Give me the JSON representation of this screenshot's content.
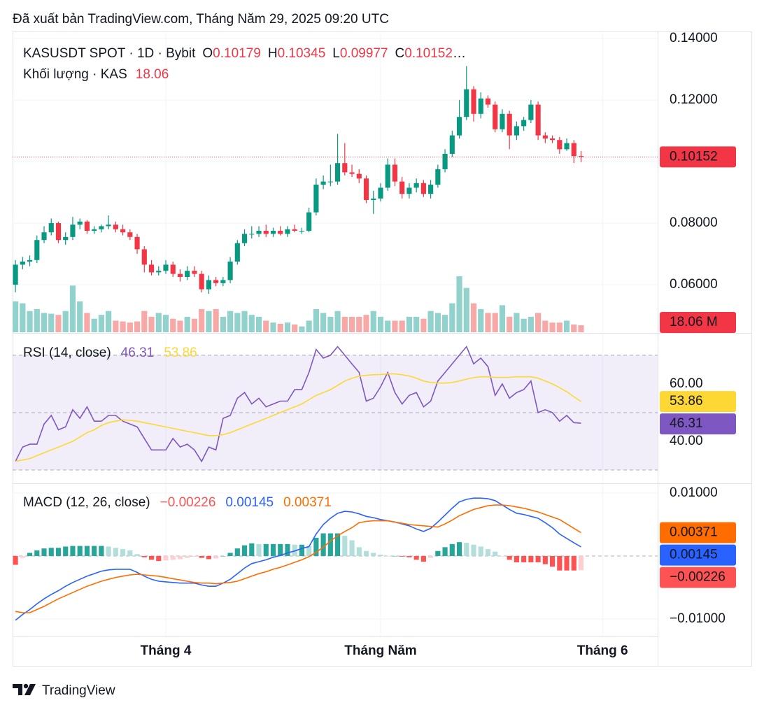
{
  "header": {
    "published": "Đã xuất bản TradingView.com, Tháng Năm 29, 2025 09:20 UTC"
  },
  "footer": {
    "brand": "TradingView"
  },
  "chart_data": [
    {
      "type": "candlestick",
      "legend": {
        "symbol": "KASUSDT SPOT · 1D · Bybit",
        "o_label": "O",
        "h_label": "H",
        "l_label": "L",
        "c_label": "C",
        "ellipsis": "…"
      },
      "xlim": [
        -0.4,
        89.7
      ],
      "ylim": [
        0.04455,
        0.14227
      ],
      "yticks": [
        {
          "value": 0.06,
          "label": "0.06000"
        },
        {
          "value": 0.08,
          "label": "0.08000"
        },
        {
          "value": 0.1,
          "label": "0.10000"
        },
        {
          "value": 0.12,
          "label": "0.12000"
        },
        {
          "value": 0.14,
          "label": "0.14000"
        }
      ],
      "grid": true,
      "up_color": "#089981",
      "down_color": "#f23645",
      "open": [
        0.06,
        0.0665,
        0.0675,
        0.068,
        0.0745,
        0.077,
        0.08,
        0.0745,
        0.0755,
        0.0795,
        0.0805,
        0.0775,
        0.078,
        0.079,
        0.0795,
        0.078,
        0.077,
        0.0755,
        0.0715,
        0.0665,
        0.064,
        0.0645,
        0.0665,
        0.0635,
        0.0625,
        0.0645,
        0.0635,
        0.0585,
        0.0615,
        0.0605,
        0.0615,
        0.0675,
        0.0735,
        0.0765,
        0.0765,
        0.0775,
        0.0765,
        0.0775,
        0.0765,
        0.078,
        0.0775,
        0.0775,
        0.0835,
        0.0925,
        0.0935,
        0.0935,
        0.0995,
        0.0965,
        0.096,
        0.0945,
        0.0875,
        0.088,
        0.0915,
        0.099,
        0.0935,
        0.0895,
        0.0915,
        0.093,
        0.0895,
        0.0925,
        0.0975,
        0.1025,
        0.1085,
        0.1145,
        0.1235,
        0.1155,
        0.1205,
        0.1185,
        0.1105,
        0.1155,
        0.1085,
        0.1115,
        0.1135,
        0.1185,
        0.1085,
        0.1075,
        0.107,
        0.104,
        0.106,
        0.10179
      ],
      "high": [
        0.068,
        0.069,
        0.0695,
        0.076,
        0.079,
        0.0815,
        0.0805,
        0.077,
        0.082,
        0.0815,
        0.081,
        0.079,
        0.0795,
        0.0825,
        0.0805,
        0.0795,
        0.078,
        0.0765,
        0.0725,
        0.068,
        0.066,
        0.068,
        0.0675,
        0.065,
        0.066,
        0.066,
        0.0645,
        0.063,
        0.0625,
        0.0625,
        0.069,
        0.0745,
        0.078,
        0.079,
        0.079,
        0.0795,
        0.0785,
        0.079,
        0.079,
        0.0795,
        0.0785,
        0.085,
        0.0945,
        0.0955,
        0.099,
        0.109,
        0.106,
        0.099,
        0.0975,
        0.0955,
        0.0905,
        0.093,
        0.101,
        0.101,
        0.095,
        0.093,
        0.0945,
        0.094,
        0.094,
        0.099,
        0.104,
        0.11,
        0.12,
        0.131,
        0.1245,
        0.1225,
        0.1215,
        0.1195,
        0.117,
        0.1165,
        0.113,
        0.1145,
        0.12,
        0.1195,
        0.1095,
        0.1085,
        0.108,
        0.1075,
        0.107,
        0.10345
      ],
      "low": [
        0.0575,
        0.065,
        0.066,
        0.067,
        0.0735,
        0.076,
        0.0735,
        0.073,
        0.0745,
        0.078,
        0.0765,
        0.0765,
        0.077,
        0.078,
        0.077,
        0.076,
        0.0745,
        0.07,
        0.064,
        0.063,
        0.063,
        0.0635,
        0.0625,
        0.061,
        0.0615,
        0.0625,
        0.0575,
        0.057,
        0.0595,
        0.0595,
        0.0605,
        0.0665,
        0.0725,
        0.075,
        0.0755,
        0.0755,
        0.0755,
        0.076,
        0.0755,
        0.077,
        0.0765,
        0.077,
        0.0825,
        0.091,
        0.092,
        0.0925,
        0.0955,
        0.095,
        0.093,
        0.0865,
        0.083,
        0.087,
        0.0905,
        0.092,
        0.088,
        0.088,
        0.09,
        0.0885,
        0.088,
        0.0915,
        0.0965,
        0.1015,
        0.1075,
        0.1135,
        0.113,
        0.114,
        0.1175,
        0.1095,
        0.1095,
        0.104,
        0.107,
        0.11,
        0.1125,
        0.107,
        0.106,
        0.106,
        0.1025,
        0.1035,
        0.0995,
        0.09977
      ],
      "close": [
        0.0665,
        0.0675,
        0.068,
        0.0745,
        0.077,
        0.08,
        0.0745,
        0.0755,
        0.0795,
        0.0805,
        0.0775,
        0.078,
        0.079,
        0.0795,
        0.078,
        0.077,
        0.0755,
        0.0715,
        0.0665,
        0.064,
        0.0645,
        0.0665,
        0.0635,
        0.0625,
        0.0645,
        0.0635,
        0.0585,
        0.0615,
        0.0605,
        0.0615,
        0.0675,
        0.0735,
        0.0765,
        0.0765,
        0.0775,
        0.0765,
        0.0775,
        0.0765,
        0.078,
        0.0775,
        0.0775,
        0.0835,
        0.0925,
        0.0935,
        0.0935,
        0.0995,
        0.0965,
        0.096,
        0.0945,
        0.0875,
        0.088,
        0.0915,
        0.099,
        0.0935,
        0.0895,
        0.0915,
        0.093,
        0.0895,
        0.0925,
        0.0975,
        0.1025,
        0.1085,
        0.1145,
        0.1235,
        0.1155,
        0.1205,
        0.1185,
        0.1105,
        0.1155,
        0.1085,
        0.1115,
        0.1135,
        0.1185,
        0.1085,
        0.1075,
        0.107,
        0.104,
        0.106,
        0.1018,
        0.10152
      ],
      "volume": {
        "name": "Khối lượng · KAS",
        "last_label": "18.06 M",
        "ylim": [
          0,
          780
        ],
        "up_color": "#92d2cc",
        "down_color": "#f7a9a7",
        "values": [
          80,
          75,
          55,
          60,
          50,
          48,
          45,
          55,
          121,
          80,
          50,
          35,
          45,
          55,
          30,
          28,
          25,
          28,
          55,
          40,
          50,
          45,
          35,
          30,
          40,
          35,
          60,
          55,
          60,
          40,
          55,
          50,
          55,
          45,
          40,
          30,
          25,
          22,
          25,
          20,
          15,
          30,
          60,
          50,
          40,
          55,
          40,
          40,
          40,
          45,
          55,
          40,
          30,
          30,
          30,
          40,
          40,
          35,
          55,
          50,
          45,
          75,
          145,
          115,
          75,
          60,
          50,
          50,
          70,
          40,
          50,
          35,
          40,
          50,
          30,
          25,
          25,
          30,
          20,
          18.06
        ]
      }
    },
    {
      "type": "line",
      "title": "RSI (14, close)",
      "ylim": [
        25.6,
        77.3
      ],
      "yticks": [
        {
          "value": 40,
          "label": "40.00"
        },
        {
          "value": 60,
          "label": "60.00"
        }
      ],
      "bands": [
        30,
        50,
        70
      ],
      "band_color": "#7e57c2",
      "series": [
        {
          "type": "line",
          "color": "#7e57c2",
          "values": [
            33,
            38,
            39,
            39,
            46,
            49,
            44,
            45,
            51,
            48,
            52,
            47,
            47,
            49,
            49,
            47,
            46,
            45,
            41,
            37,
            37,
            37,
            41,
            38,
            39,
            37,
            33,
            38,
            37,
            48,
            49,
            55,
            57,
            53,
            55,
            52,
            53,
            54,
            54,
            58,
            58,
            64,
            72,
            69,
            70,
            73,
            70,
            67,
            64,
            54,
            55,
            59,
            64,
            57,
            53,
            56,
            57,
            52,
            54,
            61,
            64,
            67,
            70,
            73,
            67,
            69,
            66,
            56,
            60,
            55,
            57,
            58,
            61,
            50,
            51,
            50,
            47,
            49,
            46.5,
            46.31
          ]
        },
        {
          "type": "line",
          "color": "#fdd835",
          "values": [
            33,
            33.5,
            34,
            35,
            36,
            37,
            38,
            39,
            40,
            41.5,
            43,
            44,
            45.5,
            46.5,
            47,
            47.5,
            47.3,
            47,
            46.5,
            46,
            45.5,
            45,
            44.5,
            44,
            43.5,
            43,
            42.5,
            42,
            42,
            42.3,
            43,
            44,
            45,
            46,
            47,
            48,
            49,
            50,
            51,
            52,
            53,
            54.5,
            56,
            57,
            58,
            59.5,
            61,
            62,
            62.7,
            63,
            63.2,
            63.3,
            63.5,
            63.5,
            63.2,
            62.8,
            62,
            61,
            60.5,
            60.3,
            60.3,
            60.5,
            61,
            61.7,
            62.2,
            62.5,
            62.5,
            62.3,
            62.3,
            62.3,
            62.5,
            62.5,
            62.5,
            62,
            61,
            60,
            58.7,
            57.3,
            55.5,
            53.86
          ]
        }
      ]
    },
    {
      "type": "line",
      "title": "MACD (12, 26, close)",
      "ylim": [
        -0.01278,
        0.01144
      ],
      "yticks": [
        {
          "value": -0.01,
          "label": "−0.01000"
        },
        {
          "value": 0.01,
          "label": "0.01000"
        }
      ],
      "xticks": [
        {
          "value": 21,
          "label": "Tháng 4"
        },
        {
          "value": 51,
          "label": "Tháng Năm"
        },
        {
          "value": 82,
          "label": "Tháng 6"
        }
      ],
      "series": [
        {
          "type": "bar",
          "colors": [
            "#26a69a",
            "#b2dfdb",
            "#ff5252",
            "#ffcdd2"
          ],
          "last_value_label": "−0.00226",
          "values": [
            -0.0014,
            -0.0003,
            0.0005,
            0.0009,
            0.0012,
            0.0013,
            0.0013,
            0.0015,
            0.0016,
            0.0016,
            0.0016,
            0.0016,
            0.0016,
            0.0015,
            0.0013,
            0.0011,
            0.0009,
            0.0003,
            -0.0002,
            -0.0006,
            -0.0008,
            -0.0007,
            -0.0006,
            -0.0005,
            -0.0003,
            -0.0001,
            -0.0003,
            -0.0005,
            -0.0004,
            0.0,
            0.0005,
            0.0012,
            0.0017,
            0.002,
            0.0019,
            0.0019,
            0.0019,
            0.0019,
            0.0019,
            0.0018,
            0.0018,
            0.0016,
            0.0029,
            0.0036,
            0.0036,
            0.0036,
            0.0032,
            0.0025,
            0.0014,
            0.0008,
            0.0005,
            0.0002,
            0.0,
            0.0,
            -0.0001,
            -0.0002,
            -0.0006,
            -0.0009,
            -0.0003,
            0.0008,
            0.0014,
            0.0019,
            0.0022,
            0.0021,
            0.0018,
            0.0015,
            0.0011,
            0.0007,
            0.0,
            -0.0006,
            -0.001,
            -0.001,
            -0.001,
            -0.001,
            -0.0013,
            -0.0017,
            -0.0023,
            -0.0023,
            -0.0023,
            -0.00226
          ]
        },
        {
          "type": "line",
          "color": "#2962ff",
          "values": [
            -0.0102,
            -0.0093,
            -0.0085,
            -0.0076,
            -0.0068,
            -0.0061,
            -0.0055,
            -0.0048,
            -0.0042,
            -0.0037,
            -0.0032,
            -0.0028,
            -0.0024,
            -0.0022,
            -0.0021,
            -0.0021,
            -0.0021,
            -0.0026,
            -0.0032,
            -0.0037,
            -0.004,
            -0.0041,
            -0.0042,
            -0.0043,
            -0.0043,
            -0.0043,
            -0.0046,
            -0.0048,
            -0.0048,
            -0.0043,
            -0.0037,
            -0.0028,
            -0.0019,
            -0.0012,
            -0.0009,
            -0.0006,
            -0.0002,
            0.0001,
            0.0005,
            0.0008,
            0.0012,
            0.0015,
            0.0035,
            0.005,
            0.006,
            0.0068,
            0.0071,
            0.007,
            0.0067,
            0.0063,
            0.0061,
            0.0058,
            0.0056,
            0.0054,
            0.0051,
            0.0048,
            0.0043,
            0.0039,
            0.0044,
            0.0054,
            0.0065,
            0.0076,
            0.0086,
            0.009,
            0.0092,
            0.0092,
            0.0091,
            0.0088,
            0.0081,
            0.0074,
            0.0068,
            0.0066,
            0.0063,
            0.006,
            0.0053,
            0.0045,
            0.0035,
            0.0028,
            0.0021,
            0.00145
          ]
        },
        {
          "type": "line",
          "color": "#ff6d00",
          "values": [
            -0.0088,
            -0.009,
            -0.009,
            -0.0085,
            -0.008,
            -0.0074,
            -0.0068,
            -0.0063,
            -0.0058,
            -0.0053,
            -0.0048,
            -0.0044,
            -0.004,
            -0.0037,
            -0.0034,
            -0.0032,
            -0.003,
            -0.0029,
            -0.003,
            -0.0031,
            -0.0032,
            -0.0034,
            -0.0036,
            -0.0038,
            -0.004,
            -0.0042,
            -0.0043,
            -0.0043,
            -0.0044,
            -0.0043,
            -0.0042,
            -0.004,
            -0.0036,
            -0.0032,
            -0.0028,
            -0.0025,
            -0.0021,
            -0.0018,
            -0.0014,
            -0.001,
            -0.0006,
            -0.0001,
            0.0006,
            0.0014,
            0.0024,
            0.0032,
            0.0039,
            0.0045,
            0.0053,
            0.0055,
            0.0056,
            0.0056,
            0.0056,
            0.0054,
            0.0052,
            0.005,
            0.0049,
            0.0048,
            0.0047,
            0.0046,
            0.0051,
            0.0057,
            0.0064,
            0.0069,
            0.0074,
            0.0077,
            0.008,
            0.0081,
            0.0081,
            0.008,
            0.0078,
            0.0076,
            0.0073,
            0.007,
            0.0066,
            0.0062,
            0.0058,
            0.0051,
            0.0044,
            0.00371
          ]
        }
      ]
    }
  ]
}
